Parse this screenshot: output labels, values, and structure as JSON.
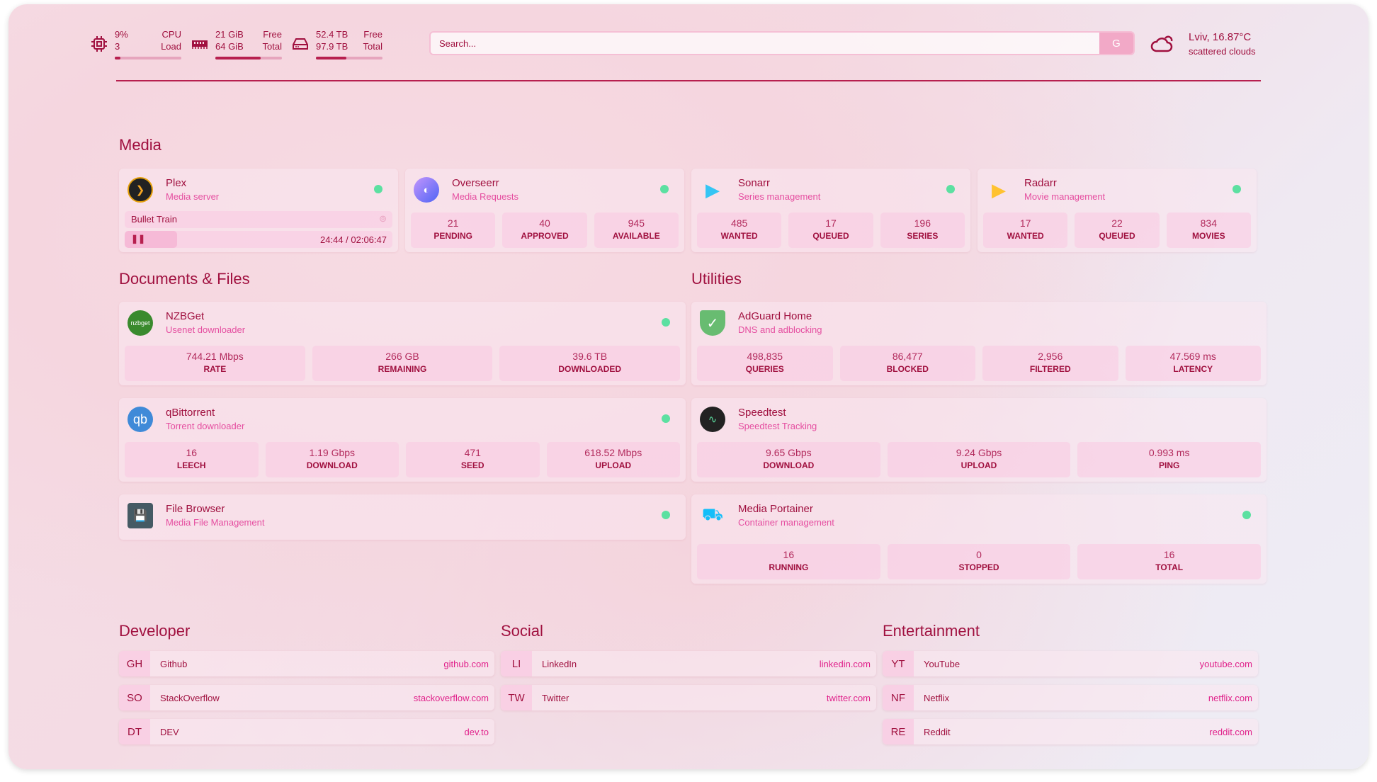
{
  "header": {
    "stats": [
      {
        "id": "cpu",
        "icon": "cpu-icon",
        "top": "9%",
        "bottom": "3",
        "label_top": "CPU",
        "label_bottom": "Load",
        "usage": 0.09
      },
      {
        "id": "ram",
        "icon": "memory-icon",
        "top": "21 GiB",
        "bottom": "64 GiB",
        "label_top": "Free",
        "label_bottom": "Total",
        "usage": 0.68
      },
      {
        "id": "disk",
        "icon": "disk-icon",
        "top": "52.4 TB",
        "bottom": "97.9 TB",
        "label_top": "Free",
        "label_bottom": "Total",
        "usage": 0.46
      }
    ],
    "search": {
      "placeholder": "Search...",
      "button": "G"
    },
    "weather": {
      "icon": "cloud-icon",
      "location": "Lviv, 16.87°C",
      "condition": "scattered clouds"
    }
  },
  "sections": {
    "media": "Media",
    "documents": "Documents & Files",
    "utilities": "Utilities",
    "developer": "Developer",
    "social": "Social",
    "entertainment": "Entertainment"
  },
  "colors": {
    "accent": "#a0103f",
    "subtitle": "#e54ea0",
    "status_online": "#5ce0a1"
  },
  "media": [
    {
      "name": "Plex",
      "desc": "Media server",
      "icon": "plex-icon",
      "status": "online",
      "now_playing": {
        "title": "Bullet Train",
        "time": "24:44 / 02:06:47",
        "progress": 0.195,
        "state": "playing"
      }
    },
    {
      "name": "Overseerr",
      "desc": "Media Requests",
      "icon": "overseerr-icon",
      "status": "online",
      "stats": [
        {
          "v": "21",
          "k": "PENDING"
        },
        {
          "v": "40",
          "k": "APPROVED"
        },
        {
          "v": "945",
          "k": "AVAILABLE"
        }
      ]
    },
    {
      "name": "Sonarr",
      "desc": "Series management",
      "icon": "sonarr-icon",
      "status": "online",
      "stats": [
        {
          "v": "485",
          "k": "WANTED"
        },
        {
          "v": "17",
          "k": "QUEUED"
        },
        {
          "v": "196",
          "k": "SERIES"
        }
      ]
    },
    {
      "name": "Radarr",
      "desc": "Movie management",
      "icon": "radarr-icon",
      "status": "online",
      "stats": [
        {
          "v": "17",
          "k": "WANTED"
        },
        {
          "v": "22",
          "k": "QUEUED"
        },
        {
          "v": "834",
          "k": "MOVIES"
        }
      ]
    }
  ],
  "documents": [
    {
      "name": "NZBGet",
      "desc": "Usenet downloader",
      "icon": "nzbget-icon",
      "status": "online",
      "stats": [
        {
          "v": "744.21 Mbps",
          "k": "RATE"
        },
        {
          "v": "266 GB",
          "k": "REMAINING"
        },
        {
          "v": "39.6 TB",
          "k": "DOWNLOADED"
        }
      ]
    },
    {
      "name": "qBittorrent",
      "desc": "Torrent downloader",
      "icon": "qbittorrent-icon",
      "status": "online",
      "stats": [
        {
          "v": "16",
          "k": "LEECH"
        },
        {
          "v": "1.19 Gbps",
          "k": "DOWNLOAD"
        },
        {
          "v": "471",
          "k": "SEED"
        },
        {
          "v": "618.52 Mbps",
          "k": "UPLOAD"
        }
      ]
    },
    {
      "name": "File Browser",
      "desc": "Media File Management",
      "icon": "filebrowser-icon",
      "status": "online"
    }
  ],
  "utilities": [
    {
      "name": "AdGuard Home",
      "desc": "DNS and adblocking",
      "icon": "adguard-icon",
      "stats": [
        {
          "v": "498,835",
          "k": "QUERIES"
        },
        {
          "v": "86,477",
          "k": "BLOCKED"
        },
        {
          "v": "2,956",
          "k": "FILTERED"
        },
        {
          "v": "47.569 ms",
          "k": "LATENCY"
        }
      ]
    },
    {
      "name": "Speedtest",
      "desc": "Speedtest Tracking",
      "icon": "speedtest-icon",
      "stats": [
        {
          "v": "9.65 Gbps",
          "k": "DOWNLOAD"
        },
        {
          "v": "9.24 Gbps",
          "k": "UPLOAD"
        },
        {
          "v": "0.993 ms",
          "k": "PING"
        }
      ]
    },
    {
      "name": "Media Portainer",
      "desc": "Container management",
      "icon": "portainer-icon",
      "status": "online",
      "stats": [
        {
          "v": "16",
          "k": "RUNNING"
        },
        {
          "v": "0",
          "k": "STOPPED"
        },
        {
          "v": "16",
          "k": "TOTAL"
        }
      ]
    }
  ],
  "bookmarks": {
    "developer": [
      {
        "abbr": "GH",
        "name": "Github",
        "url": "github.com"
      },
      {
        "abbr": "SO",
        "name": "StackOverflow",
        "url": "stackoverflow.com"
      },
      {
        "abbr": "DT",
        "name": "DEV",
        "url": "dev.to"
      }
    ],
    "social": [
      {
        "abbr": "LI",
        "name": "LinkedIn",
        "url": "linkedin.com"
      },
      {
        "abbr": "TW",
        "name": "Twitter",
        "url": "twitter.com"
      }
    ],
    "entertainment": [
      {
        "abbr": "YT",
        "name": "YouTube",
        "url": "youtube.com"
      },
      {
        "abbr": "NF",
        "name": "Netflix",
        "url": "netflix.com"
      },
      {
        "abbr": "RE",
        "name": "Reddit",
        "url": "reddit.com"
      }
    ]
  }
}
